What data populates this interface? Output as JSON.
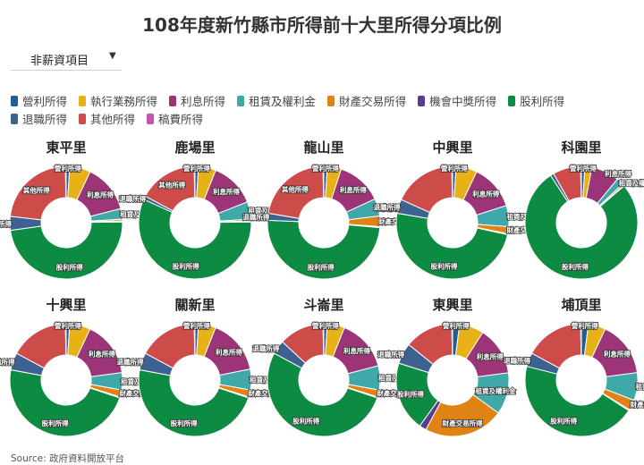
{
  "title": "108年度新竹縣市所得前十大里所得分項比例",
  "dropdown": {
    "selected": "非薪資項目"
  },
  "source": "Source: 政府資料開放平台",
  "categories": [
    {
      "key": "operating",
      "label": "營利所得",
      "color": "#1f5f99"
    },
    {
      "key": "practice",
      "label": "執行業務所得",
      "color": "#e8b116"
    },
    {
      "key": "interest",
      "label": "利息所得",
      "color": "#9c3477"
    },
    {
      "key": "rental",
      "label": "租賃及權利金",
      "color": "#3fa9a9"
    },
    {
      "key": "property",
      "label": "財產交易所得",
      "color": "#e08214"
    },
    {
      "key": "lottery",
      "label": "機會中獎所得",
      "color": "#5a3c8f"
    },
    {
      "key": "dividend",
      "label": "股利所得",
      "color": "#0e8b43"
    },
    {
      "key": "retirement",
      "label": "退職所得",
      "color": "#3d6190"
    },
    {
      "key": "other",
      "label": "其他所得",
      "color": "#cd4b48"
    },
    {
      "key": "manuscript",
      "label": "稿費所得",
      "color": "#c453b2"
    }
  ],
  "chart_data": {
    "type": "pie",
    "donut": true,
    "categories": [
      "營利所得",
      "執行業務所得",
      "利息所得",
      "租賃及權利金",
      "財產交易所得",
      "機會中獎所得",
      "股利所得",
      "退職所得",
      "其他所得",
      "稿費所得"
    ],
    "charts": [
      {
        "name": "東平里",
        "values": [
          1,
          6,
          14,
          3,
          0.5,
          0.3,
          48,
          4,
          23,
          0.2
        ]
      },
      {
        "name": "鹿場里",
        "values": [
          1,
          5,
          13,
          5,
          0.5,
          0.3,
          57,
          1,
          17,
          0.2
        ]
      },
      {
        "name": "龍山里",
        "values": [
          1,
          4,
          13,
          5,
          3,
          0.3,
          49,
          2,
          22,
          0.2
        ]
      },
      {
        "name": "中興里",
        "values": [
          1,
          6,
          13,
          6,
          2,
          0.3,
          49,
          4,
          18,
          0.2
        ]
      },
      {
        "name": "科園里",
        "values": [
          1,
          2,
          8,
          2,
          0.5,
          0.2,
          77,
          1,
          8,
          0.2
        ]
      },
      {
        "name": "十興里",
        "values": [
          1,
          6,
          16,
          5,
          2,
          0.3,
          48,
          5,
          17,
          0.2
        ]
      },
      {
        "name": "關新里",
        "values": [
          1,
          5,
          16,
          6,
          2,
          0.3,
          48,
          5,
          17,
          0.2
        ]
      },
      {
        "name": "斗崙里",
        "values": [
          1,
          5,
          15,
          7,
          2,
          0.3,
          53,
          4,
          13,
          0.2
        ]
      },
      {
        "name": "東興里",
        "values": [
          2,
          7,
          14,
          12,
          23,
          2,
          20,
          6,
          14,
          0.2
        ]
      },
      {
        "name": "埔頂里",
        "values": [
          2,
          5,
          16,
          8,
          3,
          0.3,
          45,
          4,
          17,
          0.2
        ]
      }
    ],
    "slice_labels": [
      [
        "營利所得",
        "利息所得",
        "租賃及權利金",
        "股利所得",
        "退職所得",
        "其他所得"
      ],
      [
        "營利所得",
        "利息所得",
        "租賃及權利金",
        "股利所得",
        "退職所得",
        "其他所得"
      ],
      [
        "營利所得",
        "利息所得",
        "租賃及權利金",
        "財產交易所得",
        "股利所得",
        "退職所得",
        "其他所得"
      ],
      [
        "營利所得",
        "利息所得",
        "租賃及權利金",
        "財產交易所得",
        "股利所得",
        "退職所得"
      ],
      [
        "營利所得",
        "利息所得",
        "租賃及權利金",
        "股利所得"
      ],
      [
        "營利所得",
        "利息所得",
        "租賃及權利金",
        "財產交易所得",
        "股利所得",
        "退職所得"
      ],
      [
        "營利所得",
        "利息所得",
        "租賃及權利金",
        "財產交易所得",
        "股利所得",
        "退職所得"
      ],
      [
        "營利所得",
        "利息所得",
        "租賃及權利金",
        "財產交易所得",
        "股利所得",
        "退職所得"
      ],
      [
        "營利所得",
        "利息所得",
        "租賃及權利金",
        "財產交易所得",
        "股利所得",
        "退職所得"
      ],
      [
        "營利所得",
        "利息所得",
        "租賃及權利金",
        "財產交易所得",
        "股利所得",
        "退職所得"
      ]
    ],
    "legend_position": "top-left"
  }
}
